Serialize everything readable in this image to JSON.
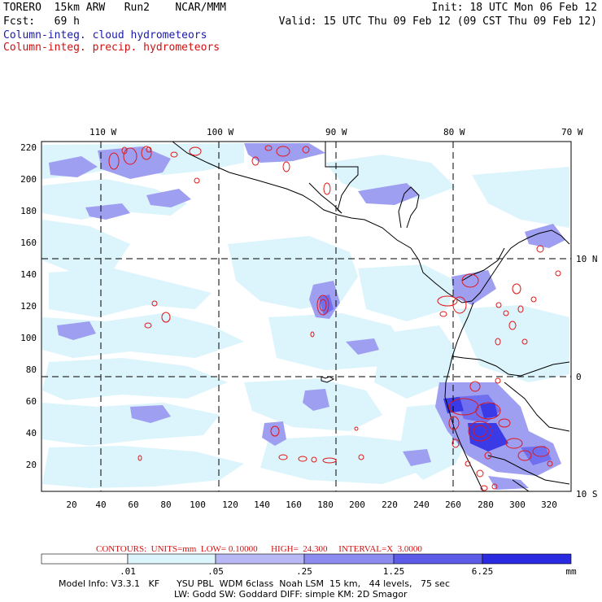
{
  "header": {
    "left_line1": "TORERO  15km ARW   Run2    NCAR/MMM",
    "left_line2": "Fcst:   69 h",
    "right_line1": "Init: 18 UTC Mon 06 Feb 12",
    "right_line2": "Valid: 15 UTC Thu 09 Feb 12 (09 CST Thu 09 Feb 12)",
    "field1": "Column-integ. cloud hydrometeors",
    "field2": "Column-integ. precip. hydrometeors"
  },
  "map": {
    "lon_labels": [
      "110 W",
      "100 W",
      "90 W",
      "80 W",
      "70 W"
    ],
    "lat_labels": [
      "10 N",
      "0",
      "10 S"
    ],
    "x_ticks": [
      "20",
      "40",
      "60",
      "80",
      "100",
      "120",
      "140",
      "160",
      "180",
      "200",
      "220",
      "240",
      "260",
      "280",
      "300",
      "320"
    ],
    "y_ticks": [
      "20",
      "40",
      "60",
      "80",
      "100",
      "120",
      "140",
      "160",
      "180",
      "200",
      "220"
    ],
    "colors": {
      "level1": "#dcf4fc",
      "level2": "#9f9ff2",
      "level3": "#6f6fef",
      "level4": "#3a3ae6",
      "contour": "#e01818",
      "coast": "#000000"
    }
  },
  "contours_line": {
    "label": "CONTOURS:  UNITS=mm  LOW= 0.10000      HIGH=  24.300     INTERVAL=X  3.0000"
  },
  "colorbar": {
    "tick_labels": [
      ".01",
      ".05",
      ".25",
      "1.25",
      "6.25"
    ],
    "units": "mm",
    "colors": [
      "#ffffff",
      "#dcf4fc",
      "#b8b8f4",
      "#8c8cf0",
      "#5c5ce8",
      "#3030e0",
      "#1010d8"
    ]
  },
  "footer": {
    "line1": "Model Info: V3.3.1   KF      YSU PBL  WDM 6class  Noah LSM  15 km,   44 levels,   75 sec",
    "line2": "LW: Godd SW: Goddard DIFF: simple KM: 2D Smagor"
  }
}
